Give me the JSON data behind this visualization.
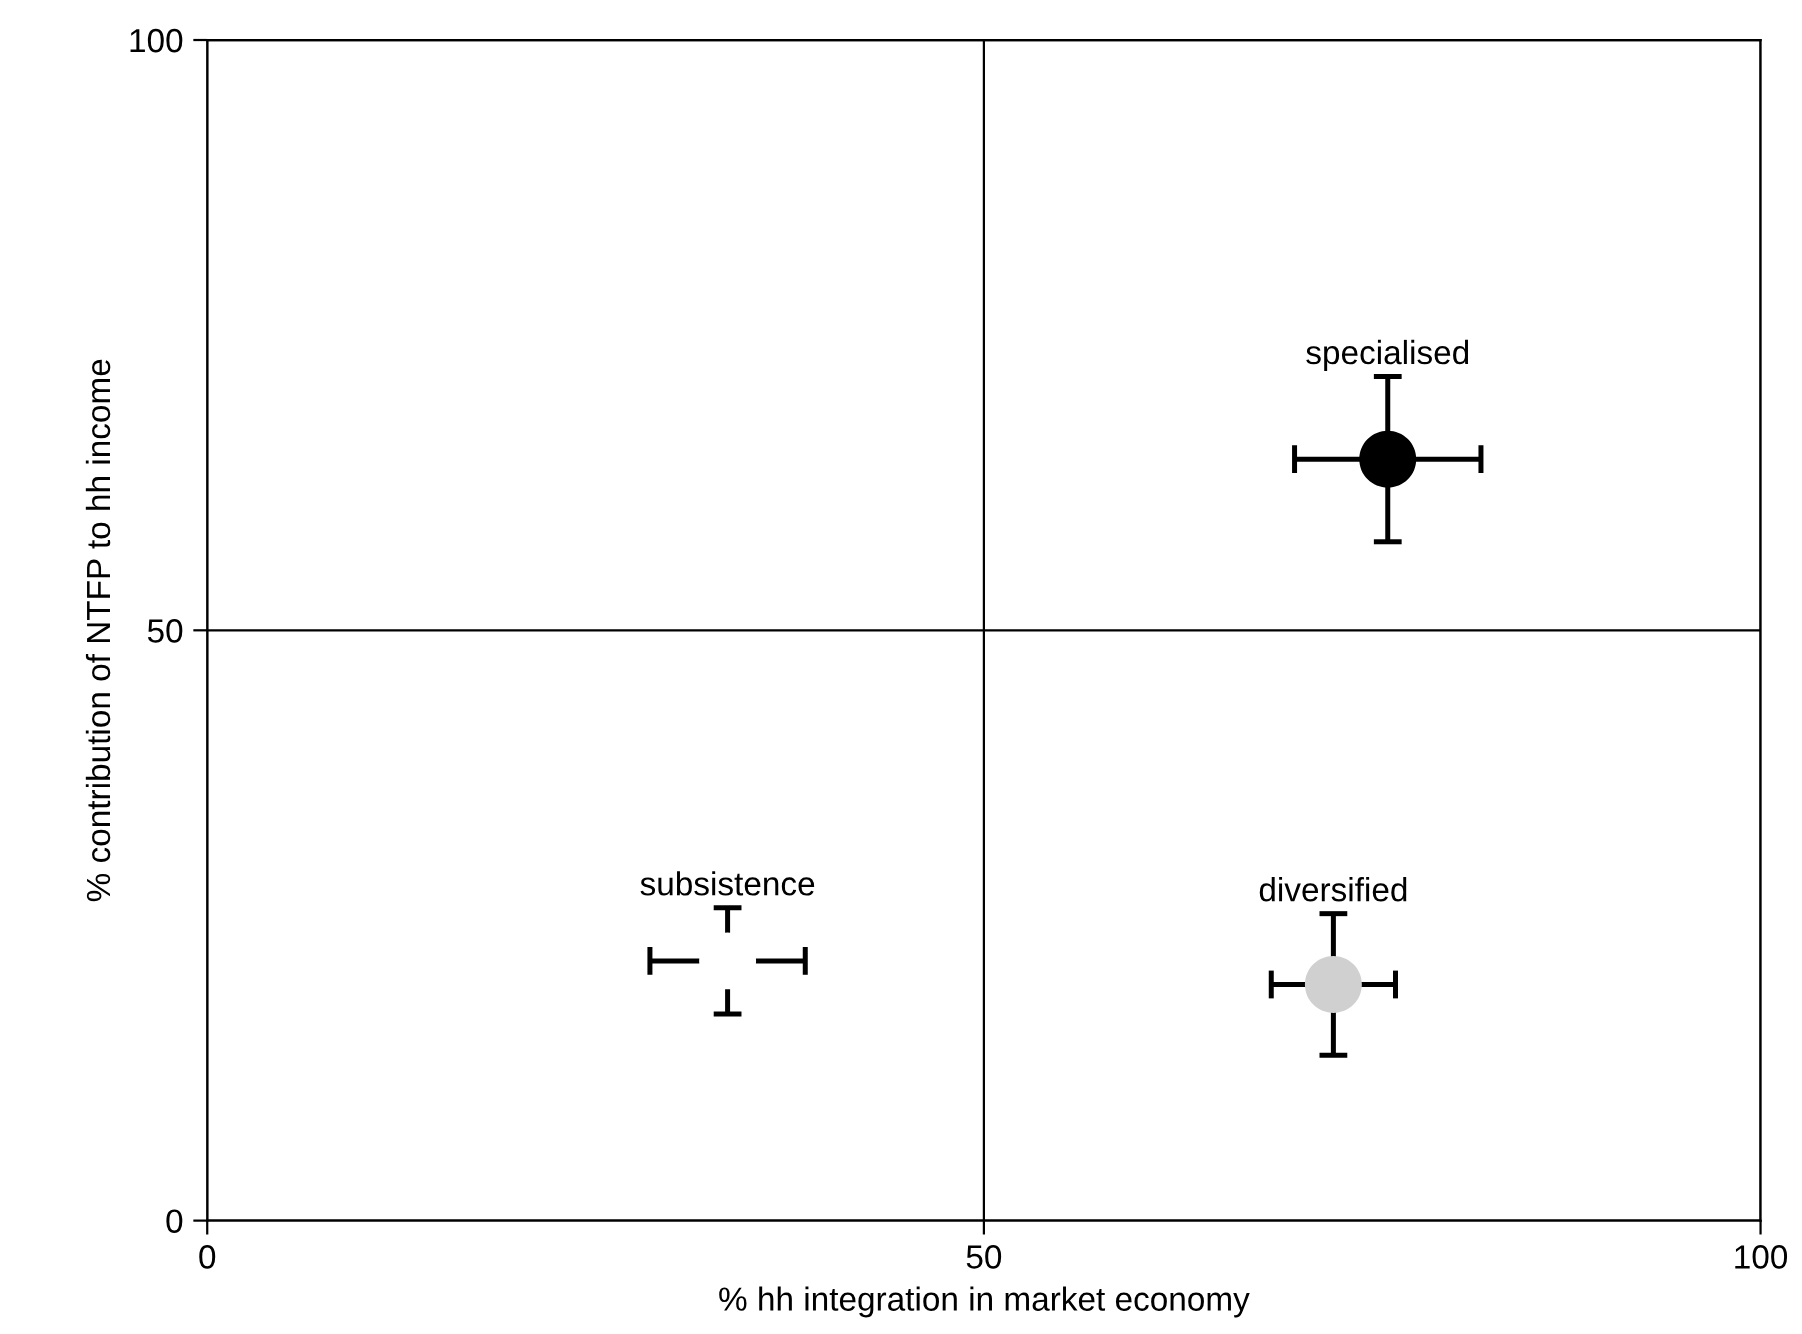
{
  "chart_data": {
    "type": "scatter",
    "xlabel": "% hh integration in market economy",
    "ylabel": "% contribution of NTFP to hh income",
    "xlim": [
      0,
      100
    ],
    "ylim": [
      0,
      100
    ],
    "xticks": [
      0,
      50,
      100
    ],
    "yticks": [
      0,
      50,
      100
    ],
    "grid": true,
    "marker": "circle",
    "series": [
      {
        "x": [
          33.5,
          72.5,
          76
        ],
        "values": [
          22,
          20,
          64.5
        ],
        "colors": [
          "#ffffff",
          "#d0d0d0",
          "#000000"
        ],
        "errors": [
          4.5,
          6,
          7
        ],
        "xerrors": [
          5,
          4,
          6
        ]
      }
    ],
    "annotations": [
      {
        "text": "subsistence",
        "x": 33.5,
        "y": 22
      },
      {
        "text": "diversified",
        "x": 72.5,
        "y": 20
      },
      {
        "text": "specialised",
        "x": 76,
        "y": 64.5
      }
    ]
  }
}
